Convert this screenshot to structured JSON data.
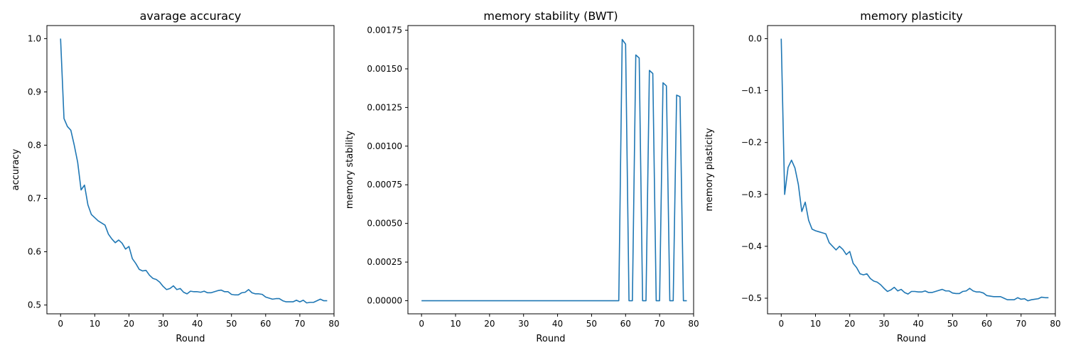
{
  "chart_data": [
    {
      "type": "line",
      "title": "avarage accuracy",
      "xlabel": "Round",
      "ylabel": "accuracy",
      "xlim": [
        -4,
        80
      ],
      "ylim": [
        0.4835,
        1.0245
      ],
      "xticks": [
        0,
        10,
        20,
        30,
        40,
        50,
        60,
        70,
        80
      ],
      "yticks": [
        0.5,
        0.6,
        0.7,
        0.8,
        0.9,
        1.0
      ],
      "ytick_labels": [
        "0.5",
        "0.6",
        "0.7",
        "0.8",
        "0.9",
        "1.0"
      ],
      "color": "#1f77b4",
      "x": [
        0,
        1,
        2,
        3,
        4,
        5,
        6,
        7,
        8,
        9,
        10,
        11,
        12,
        13,
        14,
        15,
        16,
        17,
        18,
        19,
        20,
        21,
        22,
        23,
        24,
        25,
        26,
        27,
        28,
        29,
        30,
        31,
        32,
        33,
        34,
        35,
        36,
        37,
        38,
        39,
        40,
        41,
        42,
        43,
        44,
        45,
        46,
        47,
        48,
        49,
        50,
        51,
        52,
        53,
        54,
        55,
        56,
        57,
        58,
        59,
        60,
        61,
        62,
        63,
        64,
        65,
        66,
        67,
        68,
        69,
        70,
        71,
        72,
        73,
        74,
        75,
        76,
        77,
        78
      ],
      "y": [
        1.0,
        0.85,
        0.835,
        0.828,
        0.8,
        0.768,
        0.716,
        0.725,
        0.688,
        0.67,
        0.664,
        0.658,
        0.654,
        0.65,
        0.633,
        0.624,
        0.617,
        0.622,
        0.616,
        0.605,
        0.61,
        0.587,
        0.578,
        0.567,
        0.564,
        0.565,
        0.556,
        0.55,
        0.548,
        0.543,
        0.535,
        0.529,
        0.531,
        0.536,
        0.529,
        0.531,
        0.524,
        0.521,
        0.526,
        0.525,
        0.525,
        0.524,
        0.526,
        0.523,
        0.523,
        0.525,
        0.527,
        0.528,
        0.525,
        0.525,
        0.52,
        0.519,
        0.519,
        0.523,
        0.524,
        0.529,
        0.523,
        0.521,
        0.521,
        0.52,
        0.515,
        0.513,
        0.511,
        0.512,
        0.512,
        0.508,
        0.506,
        0.506,
        0.506,
        0.509,
        0.506,
        0.509,
        0.504,
        0.505,
        0.505,
        0.508,
        0.511,
        0.508,
        0.508
      ]
    },
    {
      "type": "line",
      "title": "memory stability (BWT)",
      "xlabel": "Round",
      "ylabel": "memory stability",
      "xlim": [
        -4,
        80
      ],
      "ylim": [
        -8.48e-05,
        0.00178
      ],
      "xticks": [
        0,
        10,
        20,
        30,
        40,
        50,
        60,
        70,
        80
      ],
      "yticks": [
        0,
        0.00025,
        0.0005,
        0.00075,
        0.001,
        0.00125,
        0.0015,
        0.00175
      ],
      "ytick_labels": [
        "0.00000",
        "0.00025",
        "0.00050",
        "0.00075",
        "0.00100",
        "0.00125",
        "0.00150",
        "0.00175"
      ],
      "color": "#1f77b4",
      "x": [
        0,
        1,
        2,
        3,
        4,
        5,
        6,
        7,
        8,
        9,
        10,
        11,
        12,
        13,
        14,
        15,
        16,
        17,
        18,
        19,
        20,
        21,
        22,
        23,
        24,
        25,
        26,
        27,
        28,
        29,
        30,
        31,
        32,
        33,
        34,
        35,
        36,
        37,
        38,
        39,
        40,
        41,
        42,
        43,
        44,
        45,
        46,
        47,
        48,
        49,
        50,
        51,
        52,
        53,
        54,
        55,
        56,
        57,
        58,
        59,
        60,
        61,
        62,
        63,
        64,
        65,
        66,
        67,
        68,
        69,
        70,
        71,
        72,
        73,
        74,
        75,
        76,
        77,
        78
      ],
      "y": [
        0,
        0,
        0,
        0,
        0,
        0,
        0,
        0,
        0,
        0,
        0,
        0,
        0,
        0,
        0,
        0,
        0,
        0,
        0,
        0,
        0,
        0,
        0,
        0,
        0,
        0,
        0,
        0,
        0,
        0,
        0,
        0,
        0,
        0,
        0,
        0,
        0,
        0,
        0,
        0,
        0,
        0,
        0,
        0,
        0,
        0,
        0,
        0,
        0,
        0,
        0,
        0,
        0,
        0,
        0,
        0,
        0,
        0,
        0,
        0.00169,
        0.00166,
        0,
        0,
        0.00159,
        0.00157,
        0,
        0,
        0.00149,
        0.00147,
        0,
        0,
        0.00141,
        0.00139,
        0,
        0,
        0.00133,
        0.00132,
        0,
        0
      ]
    },
    {
      "type": "line",
      "title": "memory plasticity",
      "xlabel": "Round",
      "ylabel": "memory plasticity",
      "xlim": [
        -4,
        80
      ],
      "ylim": [
        -0.5301,
        0.0253
      ],
      "xticks": [
        0,
        10,
        20,
        30,
        40,
        50,
        60,
        70,
        80
      ],
      "yticks": [
        0.0,
        -0.1,
        -0.2,
        -0.3,
        -0.4,
        -0.5
      ],
      "ytick_labels": [
        "0.0",
        "−0.1",
        "−0.2",
        "−0.3",
        "−0.4",
        "−0.5"
      ],
      "color": "#1f77b4",
      "x": [
        0,
        1,
        2,
        3,
        4,
        5,
        6,
        7,
        8,
        9,
        10,
        11,
        12,
        13,
        14,
        15,
        16,
        17,
        18,
        19,
        20,
        21,
        22,
        23,
        24,
        25,
        26,
        27,
        28,
        29,
        30,
        31,
        32,
        33,
        34,
        35,
        36,
        37,
        38,
        39,
        40,
        41,
        42,
        43,
        44,
        45,
        46,
        47,
        48,
        49,
        50,
        51,
        52,
        53,
        54,
        55,
        56,
        57,
        58,
        59,
        60,
        61,
        62,
        63,
        64,
        65,
        66,
        67,
        68,
        69,
        70,
        71,
        72,
        73,
        74,
        75,
        76,
        77,
        78
      ],
      "y": [
        0.0,
        -0.3,
        -0.248,
        -0.234,
        -0.249,
        -0.281,
        -0.333,
        -0.315,
        -0.35,
        -0.367,
        -0.37,
        -0.372,
        -0.374,
        -0.376,
        -0.393,
        -0.4,
        -0.407,
        -0.4,
        -0.406,
        -0.416,
        -0.41,
        -0.433,
        -0.441,
        -0.453,
        -0.455,
        -0.453,
        -0.462,
        -0.467,
        -0.469,
        -0.474,
        -0.481,
        -0.487,
        -0.484,
        -0.479,
        -0.486,
        -0.483,
        -0.489,
        -0.492,
        -0.487,
        -0.487,
        -0.488,
        -0.488,
        -0.486,
        -0.489,
        -0.489,
        -0.487,
        -0.485,
        -0.483,
        -0.486,
        -0.486,
        -0.49,
        -0.491,
        -0.491,
        -0.487,
        -0.486,
        -0.481,
        -0.486,
        -0.488,
        -0.488,
        -0.49,
        -0.495,
        -0.496,
        -0.497,
        -0.497,
        -0.497,
        -0.5,
        -0.503,
        -0.503,
        -0.503,
        -0.499,
        -0.502,
        -0.501,
        -0.505,
        -0.503,
        -0.502,
        -0.501,
        -0.498,
        -0.499,
        -0.499
      ]
    }
  ]
}
